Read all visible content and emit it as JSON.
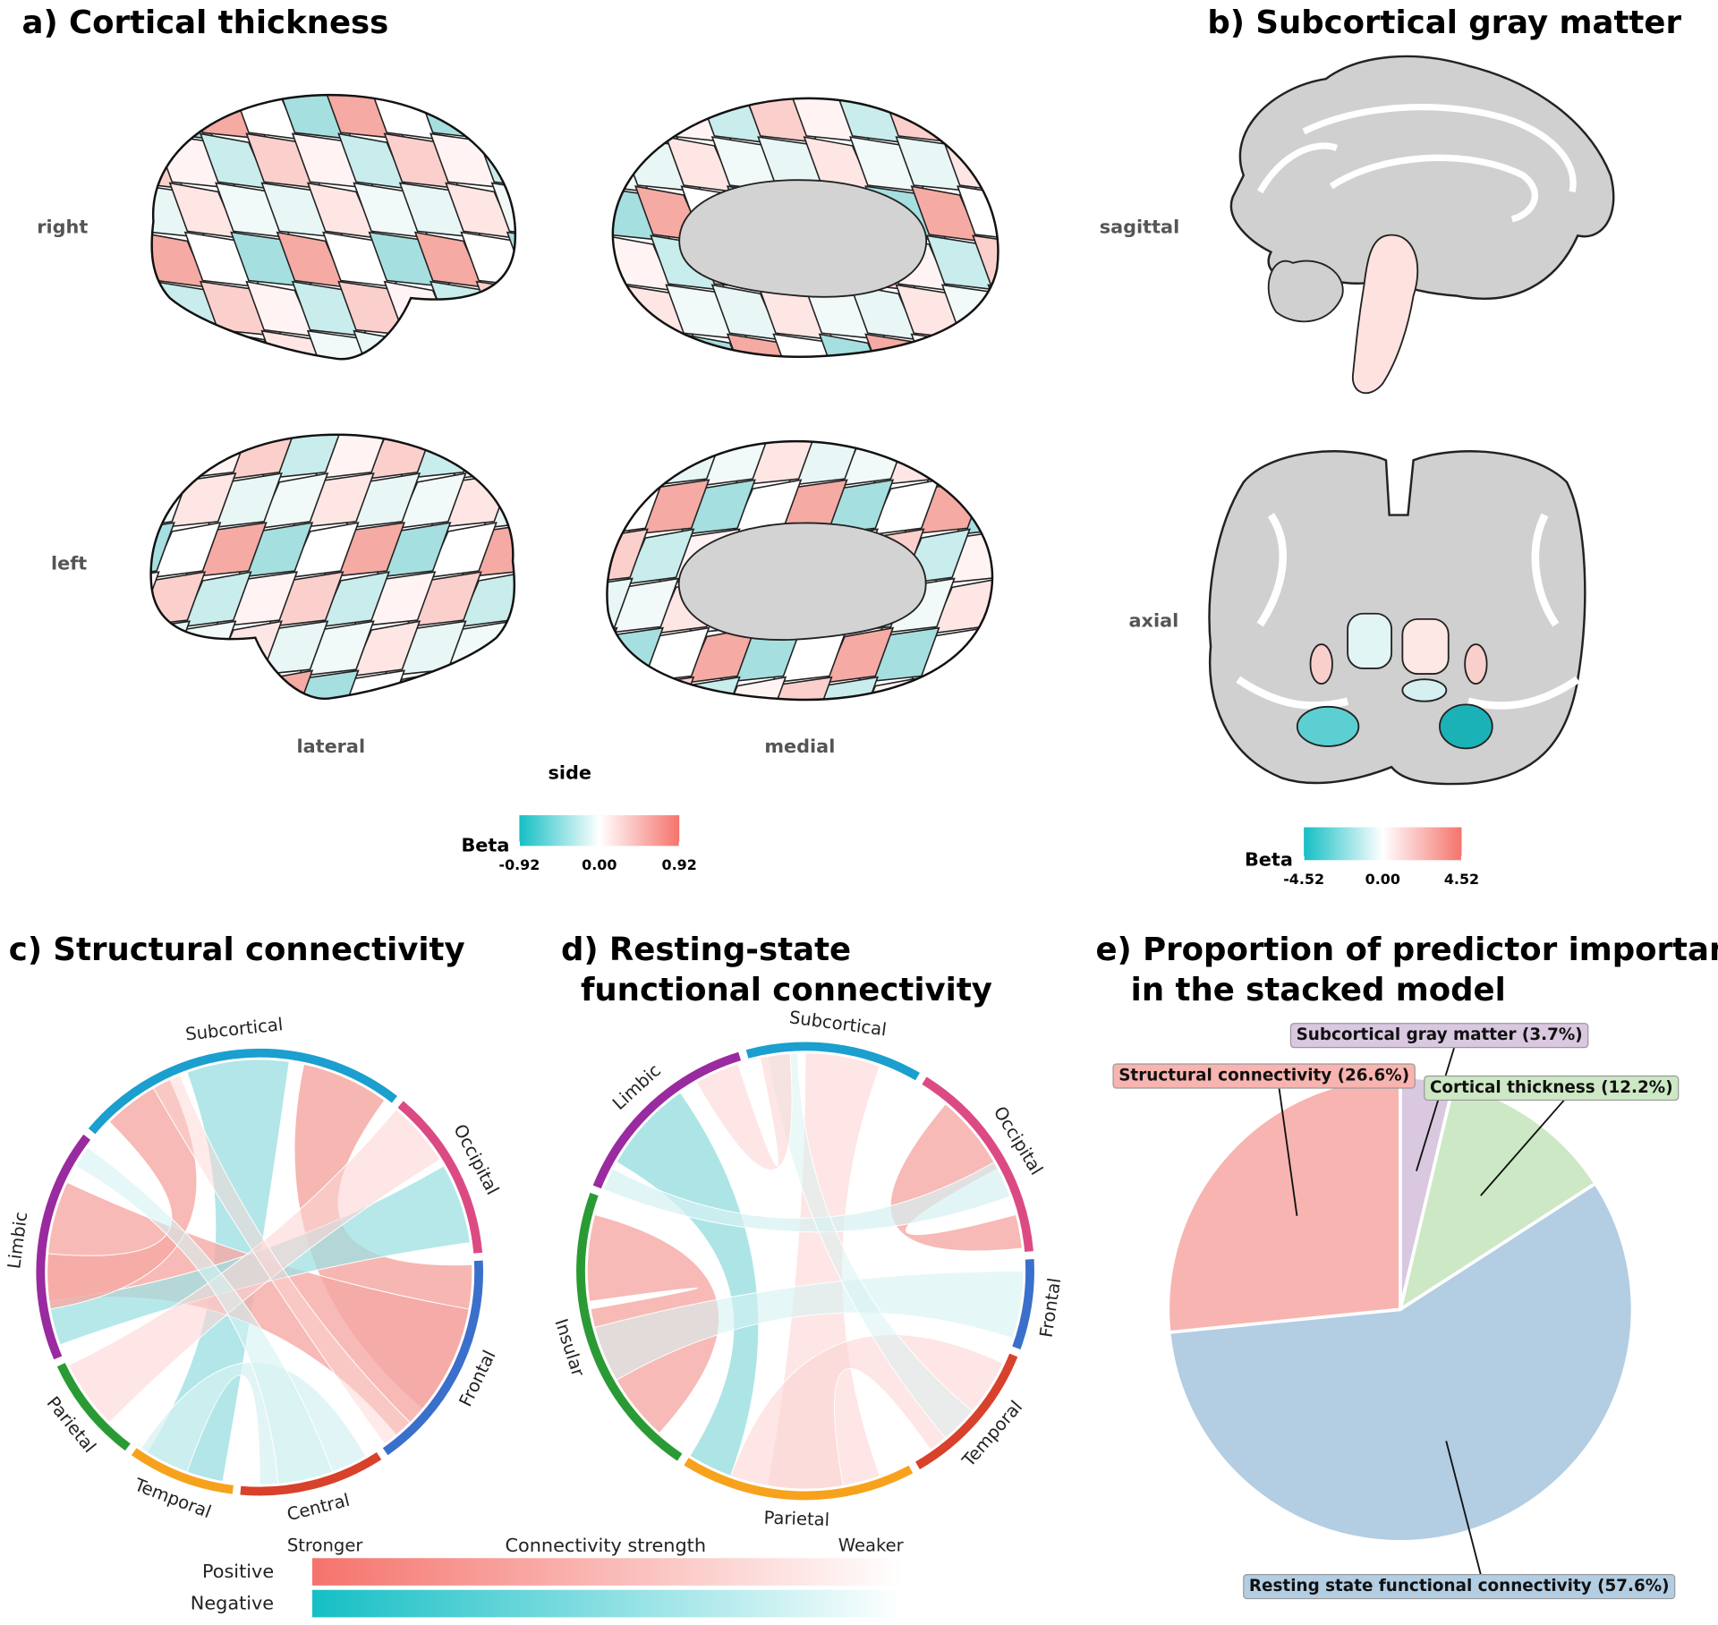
{
  "panels": {
    "a": {
      "title": "a) Cortical thickness",
      "row_labels": [
        "right",
        "left"
      ],
      "column_labels": [
        "lateral",
        "medial"
      ],
      "axis_label": "side",
      "legend": {
        "title": "Beta",
        "lim": [
          -0.92,
          0.92
        ],
        "ticks": [
          -0.92,
          {
            "value": 0,
            "label": "0.00"
          },
          0.92
        ],
        "colors": [
          "#14bfc5",
          "#ffffff",
          "#f5736c"
        ]
      }
    },
    "b": {
      "title": "b) Subcortical gray matter",
      "row_labels": [
        "sagittal",
        "axial"
      ],
      "legend": {
        "title": "Beta",
        "lim": [
          -4.52,
          4.52
        ],
        "ticks": [
          -4.52,
          {
            "value": 0,
            "label": "0.00"
          },
          4.52
        ],
        "colors": [
          "#14bfc5",
          "#ffffff",
          "#f5736c"
        ]
      }
    },
    "c": {
      "title": "c) Structural connectivity",
      "sectors": [
        {
          "name": "Subcortical",
          "color": "#1a9fcf"
        },
        {
          "name": "Occipital",
          "color": "#dc4a84"
        },
        {
          "name": "Frontal",
          "color": "#3b6fcc"
        },
        {
          "name": "Central",
          "color": "#d8412b"
        },
        {
          "name": "Temporal",
          "color": "#f7a21c"
        },
        {
          "name": "Parietal",
          "color": "#2a9b34"
        },
        {
          "name": "Limbic",
          "color": "#9a2aa0"
        }
      ]
    },
    "d": {
      "title": [
        "d) Resting-state",
        "functional connectivity"
      ],
      "sectors": [
        {
          "name": "Subcortical",
          "color": "#1a9fcf"
        },
        {
          "name": "Occipital",
          "color": "#dc4a84"
        },
        {
          "name": "Frontal",
          "color": "#3b6fcc"
        },
        {
          "name": "Temporal",
          "color": "#d8412b"
        },
        {
          "name": "Parietal",
          "color": "#f7a21c"
        },
        {
          "name": "Insular",
          "color": "#2a9b34"
        },
        {
          "name": "Limbic",
          "color": "#9a2aa0"
        }
      ]
    },
    "connectivity_legend": {
      "title": "Connectivity strength",
      "left": "Stronger",
      "right": "Weaker",
      "rows": [
        {
          "name": "Positive",
          "color": "#f5736c"
        },
        {
          "name": "Negative",
          "color": "#14bfc5"
        }
      ]
    }
  },
  "chart_data": {
    "type": "pie",
    "title": [
      "e) Proportion of predictor importance",
      "in the stacked model"
    ],
    "categories": [
      "Subcortical gray matter (3.7%)",
      "Cortical thickness (12.2%)",
      "Resting state functional connectivity (57.6%)",
      "Structural connectivity (26.6%)"
    ],
    "values": [
      3.7,
      12.2,
      57.6,
      26.6
    ],
    "colors": [
      "#d9c8e0",
      "#cde8c4",
      "#b3cde3",
      "#f8b4b0"
    ]
  }
}
